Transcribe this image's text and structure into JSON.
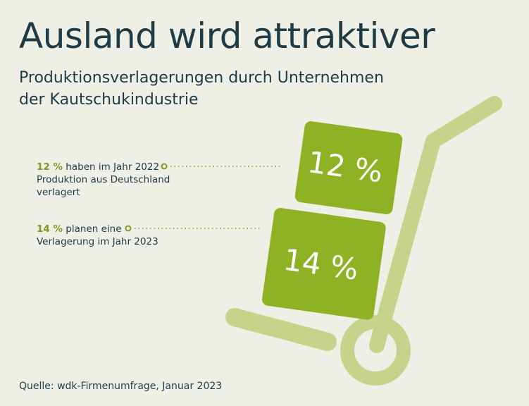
{
  "title": "Ausland wird attraktiver",
  "subtitle_line1": "Produktionsverlagerungen durch Unternehmen",
  "subtitle_line2": "der Kautschukindustrie",
  "annotations": [
    {
      "pct": "12 %",
      "line1_rest": " haben im Jahr 2022",
      "line2": "Produktion aus Deutschland",
      "line3": "verlagert"
    },
    {
      "pct": "14 %",
      "line1_rest": " planen eine",
      "line2": "Verlagerung im Jahr 2023"
    }
  ],
  "source": "Quelle: wdk-Firmenumfrage, Januar 2023",
  "colors": {
    "background": "#eef0e6",
    "box_green": "#8fb224",
    "cart_light_green": "#c5d48a",
    "text_dark": "#1f3b45",
    "accent_green": "#7d9a24"
  },
  "chart_data": {
    "type": "pictogram",
    "title": "Ausland wird attraktiver",
    "categories": [
      "2022",
      "2023"
    ],
    "values": [
      12,
      14
    ],
    "unit": "%",
    "labels": [
      "12 %",
      "14 %"
    ]
  }
}
